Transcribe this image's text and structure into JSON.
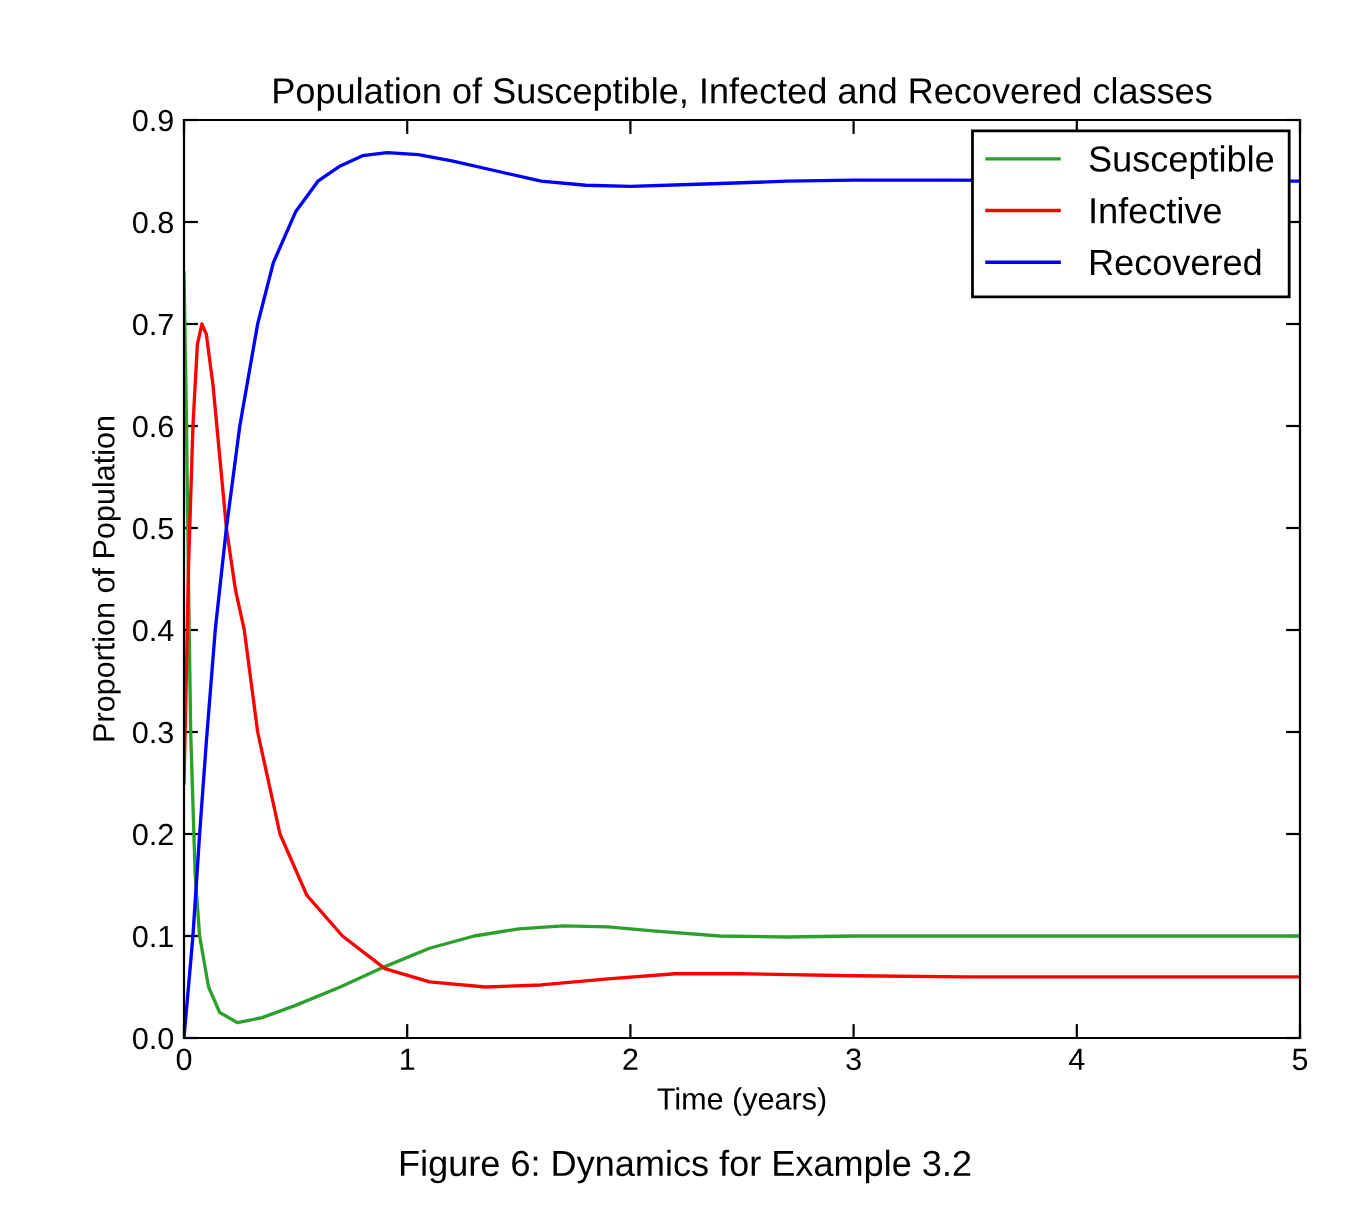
{
  "chart_data": {
    "type": "line",
    "title": "Population of Susceptible, Infected and Recovered classes",
    "xlabel": "Time (years)",
    "ylabel": "Proportion of Population",
    "annotations": [
      "Figure 6: Dynamics for Example 3.2"
    ],
    "xlim": [
      0,
      5
    ],
    "ylim": [
      0,
      0.9
    ],
    "xticks": [
      0,
      1,
      2,
      3,
      4,
      5
    ],
    "yticks": [
      {
        "value": 0,
        "label": "0.0"
      },
      0.1,
      0.2,
      0.3,
      0.4,
      0.5,
      0.6,
      0.7,
      0.8,
      0.9
    ],
    "grid": false,
    "legend": "top right",
    "line_style": "solid",
    "series": [
      {
        "name": "Susceptible",
        "color": "#2ca02c",
        "x": [
          0,
          0.01,
          0.02,
          0.03,
          0.05,
          0.07,
          0.11,
          0.16,
          0.24,
          0.35,
          0.5,
          0.7,
          0.9,
          1.1,
          1.3,
          1.5,
          1.7,
          1.9,
          2.1,
          2.4,
          2.7,
          3,
          3.5,
          4,
          4.5,
          5
        ],
        "values": [
          0.75,
          0.62,
          0.45,
          0.3,
          0.16,
          0.1,
          0.05,
          0.025,
          0.015,
          0.02,
          0.032,
          0.05,
          0.07,
          0.088,
          0.1,
          0.107,
          0.11,
          0.109,
          0.105,
          0.1,
          0.099,
          0.1,
          0.1,
          0.1,
          0.1,
          0.1
        ]
      },
      {
        "name": "Infective",
        "color": "#ff0000",
        "x": [
          0,
          0.01,
          0.02,
          0.04,
          0.06,
          0.08,
          0.1,
          0.13,
          0.16,
          0.19,
          0.23,
          0.27,
          0.33,
          0.43,
          0.55,
          0.71,
          0.9,
          1.1,
          1.35,
          1.6,
          1.9,
          2.2,
          2.5,
          3,
          3.5,
          4,
          5
        ],
        "values": [
          0.25,
          0.35,
          0.46,
          0.6,
          0.68,
          0.7,
          0.69,
          0.64,
          0.57,
          0.5,
          0.44,
          0.4,
          0.3,
          0.2,
          0.14,
          0.1,
          0.068,
          0.055,
          0.05,
          0.052,
          0.058,
          0.063,
          0.063,
          0.061,
          0.06,
          0.06,
          0.06
        ]
      },
      {
        "name": "Recovered",
        "color": "#0000ff",
        "x": [
          0,
          0.02,
          0.04,
          0.07,
          0.1,
          0.14,
          0.19,
          0.25,
          0.33,
          0.4,
          0.5,
          0.6,
          0.7,
          0.8,
          0.91,
          1.05,
          1.2,
          1.4,
          1.6,
          1.8,
          2,
          2.3,
          2.7,
          3,
          3.4,
          4.95,
          5
        ],
        "values": [
          0,
          0.05,
          0.1,
          0.2,
          0.29,
          0.4,
          0.5,
          0.6,
          0.7,
          0.76,
          0.81,
          0.84,
          0.855,
          0.865,
          0.868,
          0.866,
          0.86,
          0.85,
          0.84,
          0.836,
          0.835,
          0.837,
          0.84,
          0.841,
          0.841,
          0.84,
          0.84
        ]
      }
    ]
  }
}
